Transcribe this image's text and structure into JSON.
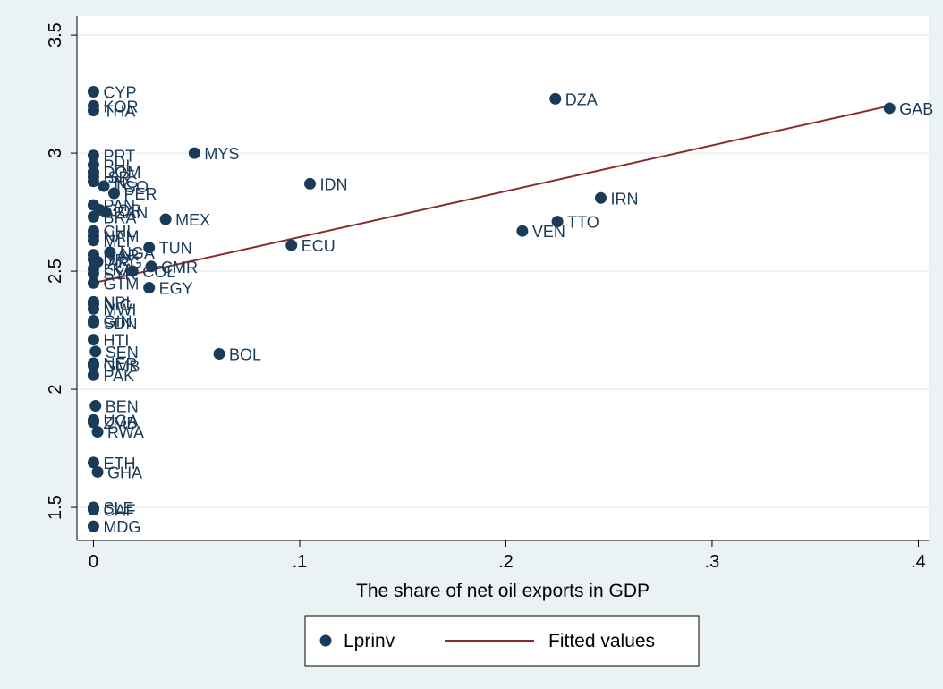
{
  "chart_data": {
    "type": "scatter",
    "xlabel": "The share of net oil exports in GDP",
    "ylabel": "",
    "xlim": [
      -0.008,
      0.405
    ],
    "ylim": [
      1.36,
      3.58
    ],
    "x_ticks": [
      0,
      0.1,
      0.2,
      0.3,
      0.4
    ],
    "x_tick_labels": [
      "0",
      ".1",
      ".2",
      ".3",
      ".4"
    ],
    "y_ticks": [
      1.5,
      2,
      2.5,
      3,
      3.5
    ],
    "y_tick_labels": [
      "1.5",
      "2",
      "2.5",
      "3",
      "3.5"
    ],
    "grid": true,
    "legend_position": "bottom",
    "colors": {
      "background": "#eaf2f3",
      "plot_bg": "#ffffff",
      "points": "#1a3a5a",
      "fit_line": "#8b2a2a"
    },
    "series": [
      {
        "name": "Lprinv",
        "kind": "scatter",
        "points": [
          {
            "label": "CYP",
            "x": 0.0,
            "y": 3.26
          },
          {
            "label": "KOR",
            "x": 0.0,
            "y": 3.2
          },
          {
            "label": "THA",
            "x": 0.0,
            "y": 3.18
          },
          {
            "label": "DZA",
            "x": 0.224,
            "y": 3.23
          },
          {
            "label": "GAB",
            "x": 0.386,
            "y": 3.19
          },
          {
            "label": "PRT",
            "x": 0.0,
            "y": 2.99
          },
          {
            "label": "PHL",
            "x": 0.0,
            "y": 2.95
          },
          {
            "label": "DOM",
            "x": 0.0,
            "y": 2.92
          },
          {
            "label": "ISR",
            "x": 0.0,
            "y": 2.9
          },
          {
            "label": "PNG",
            "x": 0.0,
            "y": 2.88
          },
          {
            "label": "TGO",
            "x": 0.005,
            "y": 2.86
          },
          {
            "label": "PER",
            "x": 0.01,
            "y": 2.83
          },
          {
            "label": "MYS",
            "x": 0.049,
            "y": 3.0
          },
          {
            "label": "IDN",
            "x": 0.105,
            "y": 2.87
          },
          {
            "label": "IRN",
            "x": 0.246,
            "y": 2.81
          },
          {
            "label": "PAN",
            "x": 0.0,
            "y": 2.78
          },
          {
            "label": "JOR",
            "x": 0.003,
            "y": 2.76
          },
          {
            "label": "ZAN",
            "x": 0.006,
            "y": 2.75
          },
          {
            "label": "BRA",
            "x": 0.0,
            "y": 2.73
          },
          {
            "label": "MEX",
            "x": 0.035,
            "y": 2.72
          },
          {
            "label": "TTO",
            "x": 0.225,
            "y": 2.71
          },
          {
            "label": "VEN",
            "x": 0.208,
            "y": 2.67
          },
          {
            "label": "CHL",
            "x": 0.0,
            "y": 2.67
          },
          {
            "label": "NAM",
            "x": 0.0,
            "y": 2.65
          },
          {
            "label": "MLI",
            "x": 0.0,
            "y": 2.63
          },
          {
            "label": "ECU",
            "x": 0.096,
            "y": 2.61
          },
          {
            "label": "TUN",
            "x": 0.027,
            "y": 2.6
          },
          {
            "label": "NGA",
            "x": 0.008,
            "y": 2.58
          },
          {
            "label": "MAR",
            "x": 0.0,
            "y": 2.57
          },
          {
            "label": "URY",
            "x": 0.0,
            "y": 2.55
          },
          {
            "label": "ARG",
            "x": 0.002,
            "y": 2.54
          },
          {
            "label": "CMR",
            "x": 0.028,
            "y": 2.52
          },
          {
            "label": "LKA",
            "x": 0.0,
            "y": 2.51
          },
          {
            "label": "COL",
            "x": 0.019,
            "y": 2.5
          },
          {
            "label": "SYR",
            "x": 0.0,
            "y": 2.49
          },
          {
            "label": "GTM",
            "x": 0.0,
            "y": 2.45
          },
          {
            "label": "EGY",
            "x": 0.027,
            "y": 2.43
          },
          {
            "label": "NPL",
            "x": 0.0,
            "y": 2.37
          },
          {
            "label": "NIC",
            "x": 0.0,
            "y": 2.36
          },
          {
            "label": "MWI",
            "x": 0.0,
            "y": 2.34
          },
          {
            "label": "GIN",
            "x": 0.0,
            "y": 2.29
          },
          {
            "label": "SDN",
            "x": 0.0,
            "y": 2.28
          },
          {
            "label": "HTI",
            "x": 0.0,
            "y": 2.21
          },
          {
            "label": "SEN",
            "x": 0.001,
            "y": 2.16
          },
          {
            "label": "BOL",
            "x": 0.061,
            "y": 2.15
          },
          {
            "label": "NER",
            "x": 0.0,
            "y": 2.11
          },
          {
            "label": "GMB",
            "x": 0.0,
            "y": 2.1
          },
          {
            "label": "PAK",
            "x": 0.0,
            "y": 2.06
          },
          {
            "label": "BEN",
            "x": 0.001,
            "y": 1.93
          },
          {
            "label": "UGA",
            "x": 0.0,
            "y": 1.87
          },
          {
            "label": "ZMB",
            "x": 0.0,
            "y": 1.86
          },
          {
            "label": "RWA",
            "x": 0.002,
            "y": 1.82
          },
          {
            "label": "ETH",
            "x": 0.0,
            "y": 1.69
          },
          {
            "label": "GHA",
            "x": 0.002,
            "y": 1.65
          },
          {
            "label": "SLE",
            "x": 0.0,
            "y": 1.5
          },
          {
            "label": "CAF",
            "x": 0.0,
            "y": 1.49
          },
          {
            "label": "MDG",
            "x": 0.0,
            "y": 1.42
          }
        ]
      },
      {
        "name": "Fitted values",
        "kind": "line",
        "x": [
          0.0,
          0.386
        ],
        "y": [
          2.45,
          3.2
        ]
      }
    ]
  }
}
